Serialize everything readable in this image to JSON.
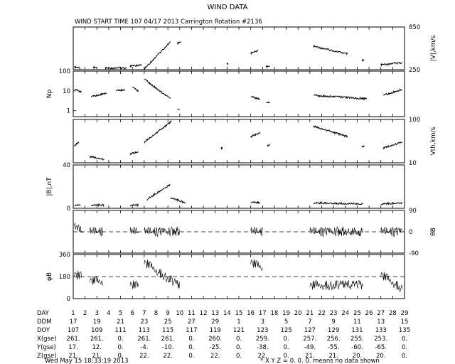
{
  "title": "WIND DATA",
  "subtitle": "WIND START TIME 107 04/17 2013 Carrington Rotation #2136",
  "footer": {
    "timestamp": "Wed May 15 18:33:19 2013",
    "note": "* X Y Z = 0. 0. 0. means no data shown"
  },
  "chart_data": [
    {
      "type": "scatter",
      "ylabel": "|V|,km/s",
      "ylim": [
        250,
        850
      ],
      "yticks": [
        "850",
        "250"
      ],
      "tick_side": "right",
      "dashed_line": null,
      "segments": [
        {
          "x": [
            1.1,
            1.6
          ],
          "y": [
            285,
            275
          ]
        },
        {
          "x": [
            2.7,
            3.0
          ],
          "y": [
            280,
            282
          ]
        },
        {
          "x": [
            3.7,
            5.5
          ],
          "y": [
            272,
            275
          ]
        },
        {
          "x": [
            5.8,
            6.8
          ],
          "y": [
            300,
            320
          ]
        },
        {
          "x": [
            7.0,
            9.2
          ],
          "y": [
            260,
            640
          ]
        },
        {
          "x": [
            9.8,
            10.1
          ],
          "y": [
            620,
            640
          ]
        },
        {
          "x": [
            14.0,
            14.1
          ],
          "y": [
            330,
            335
          ]
        },
        {
          "x": [
            16.0,
            16.6
          ],
          "y": [
            480,
            520
          ]
        },
        {
          "x": [
            17.3,
            17.6
          ],
          "y": [
            290,
            300
          ]
        },
        {
          "x": [
            21.3,
            24.2
          ],
          "y": [
            580,
            470
          ]
        },
        {
          "x": [
            25.4,
            25.6
          ],
          "y": [
            380,
            382
          ]
        },
        {
          "x": [
            27.0,
            28.8
          ],
          "y": [
            320,
            350
          ]
        }
      ]
    },
    {
      "type": "scatter",
      "ylabel": "Np",
      "ylim": [
        0.5,
        100
      ],
      "log": true,
      "yticks": [
        "100",
        "10",
        "1"
      ],
      "tick_side": "left",
      "dashed_line": null,
      "segments": [
        {
          "x": [
            1.1,
            1.7
          ],
          "y": [
            12,
            9
          ]
        },
        {
          "x": [
            2.5,
            3.8
          ],
          "y": [
            5,
            8
          ]
        },
        {
          "x": [
            4.6,
            5.4
          ],
          "y": [
            10,
            12
          ]
        },
        {
          "x": [
            6.0,
            6.5
          ],
          "y": [
            15,
            10
          ]
        },
        {
          "x": [
            7.0,
            9.2
          ],
          "y": [
            40,
            4
          ]
        },
        {
          "x": [
            9.8,
            10.0
          ],
          "y": [
            1.2,
            1.1
          ]
        },
        {
          "x": [
            16.0,
            16.8
          ],
          "y": [
            5,
            4
          ]
        },
        {
          "x": [
            17.3,
            17.6
          ],
          "y": [
            2.5,
            2.5
          ]
        },
        {
          "x": [
            21.3,
            25.8
          ],
          "y": [
            6,
            4
          ]
        },
        {
          "x": [
            27.2,
            28.8
          ],
          "y": [
            6,
            12
          ]
        }
      ]
    },
    {
      "type": "scatter",
      "ylabel": "Vth,km/s",
      "ylim": [
        10,
        100
      ],
      "log": true,
      "yticks": [
        "100",
        "10"
      ],
      "tick_side": "right",
      "dashed_line": null,
      "segments": [
        {
          "x": [
            1.1,
            1.5
          ],
          "y": [
            25,
            30
          ]
        },
        {
          "x": [
            2.4,
            3.6
          ],
          "y": [
            14,
            12
          ]
        },
        {
          "x": [
            5.8,
            6.5
          ],
          "y": [
            16,
            18
          ]
        },
        {
          "x": [
            7.0,
            9.3
          ],
          "y": [
            30,
            90
          ]
        },
        {
          "x": [
            13.5,
            13.6
          ],
          "y": [
            22,
            22
          ]
        },
        {
          "x": [
            16.0,
            16.8
          ],
          "y": [
            40,
            50
          ]
        },
        {
          "x": [
            17.4,
            17.6
          ],
          "y": [
            25,
            26
          ]
        },
        {
          "x": [
            21.3,
            24.2
          ],
          "y": [
            70,
            40
          ]
        },
        {
          "x": [
            25.4,
            25.6
          ],
          "y": [
            24,
            24
          ]
        },
        {
          "x": [
            27.2,
            28.8
          ],
          "y": [
            22,
            30
          ]
        }
      ]
    },
    {
      "type": "scatter",
      "ylabel": "|B|,nT",
      "ylim": [
        0,
        40
      ],
      "yticks": [
        "40",
        "0"
      ],
      "tick_side": "left",
      "dashed_line": null,
      "segments": [
        {
          "x": [
            1.1,
            1.6
          ],
          "y": [
            3,
            3
          ]
        },
        {
          "x": [
            2.5,
            3.6
          ],
          "y": [
            3,
            3
          ]
        },
        {
          "x": [
            5.8,
            6.5
          ],
          "y": [
            3,
            3
          ]
        },
        {
          "x": [
            7.2,
            9.2
          ],
          "y": [
            8,
            22
          ]
        },
        {
          "x": [
            9.2,
            10.5
          ],
          "y": [
            10,
            5
          ]
        },
        {
          "x": [
            16.0,
            16.8
          ],
          "y": [
            6,
            5
          ]
        },
        {
          "x": [
            21.3,
            25.5
          ],
          "y": [
            5,
            4
          ]
        },
        {
          "x": [
            27.0,
            28.8
          ],
          "y": [
            4,
            5
          ]
        }
      ]
    },
    {
      "type": "scatter",
      "ylabel": "θB",
      "ylim": [
        -90,
        90
      ],
      "yticks": [
        "90",
        "0",
        "-90"
      ],
      "tick_side": "right",
      "dashed_line": 0,
      "segments": [
        {
          "x": [
            1.1,
            1.8
          ],
          "y": [
            20,
            0
          ]
        },
        {
          "x": [
            2.4,
            3.5
          ],
          "y": [
            0,
            0
          ]
        },
        {
          "x": [
            5.8,
            6.5
          ],
          "y": [
            0,
            0
          ]
        },
        {
          "x": [
            7.0,
            10.0
          ],
          "y": [
            0,
            0
          ]
        },
        {
          "x": [
            16.0,
            17.0
          ],
          "y": [
            0,
            0
          ]
        },
        {
          "x": [
            21.0,
            25.5
          ],
          "y": [
            0,
            0
          ]
        },
        {
          "x": [
            27.0,
            28.8
          ],
          "y": [
            0,
            0
          ]
        }
      ]
    },
    {
      "type": "scatter",
      "ylabel": "φB",
      "ylim": [
        0,
        360
      ],
      "yticks": [
        "360",
        "180",
        "0"
      ],
      "tick_side": "left",
      "dashed_line": 180,
      "segments": [
        {
          "x": [
            1.1,
            1.7
          ],
          "y": [
            200,
            180
          ]
        },
        {
          "x": [
            2.4,
            3.5
          ],
          "y": [
            150,
            140
          ]
        },
        {
          "x": [
            5.8,
            6.5
          ],
          "y": [
            120,
            100
          ]
        },
        {
          "x": [
            7.0,
            10.0
          ],
          "y": [
            300,
            100
          ]
        },
        {
          "x": [
            16.0,
            17.0
          ],
          "y": [
            300,
            250
          ]
        },
        {
          "x": [
            21.0,
            25.5
          ],
          "y": [
            110,
            110
          ]
        },
        {
          "x": [
            27.0,
            28.8
          ],
          "y": [
            200,
            80
          ]
        }
      ]
    }
  ],
  "x_axis": {
    "day_min": 1,
    "day_max": 29,
    "rows": [
      {
        "label": "DAY",
        "values": [
          "1",
          "2",
          "3",
          "4",
          "5",
          "6",
          "7",
          "8",
          "9",
          "10",
          "11",
          "12",
          "13",
          "14",
          "15",
          "16",
          "17",
          "18",
          "19",
          "20",
          "21",
          "22",
          "23",
          "24",
          "25",
          "26",
          "27",
          "28",
          "29"
        ]
      },
      {
        "label": "DDM",
        "values": [
          "17",
          "19",
          "21",
          "23",
          "25",
          "27",
          "29",
          "1",
          "3",
          "5",
          "7",
          "9",
          "11",
          "13",
          "15"
        ]
      },
      {
        "label": "DOY",
        "values": [
          "107",
          "109",
          "111",
          "113",
          "115",
          "117",
          "119",
          "121",
          "123",
          "125",
          "127",
          "129",
          "131",
          "133",
          "135"
        ]
      },
      {
        "label": "X(gse)",
        "values": [
          "261.",
          "261.",
          "0.",
          "261.",
          "261.",
          "0.",
          "260.",
          "0.",
          "259.",
          "0.",
          "257.",
          "256.",
          "255.",
          "253.",
          "0."
        ]
      },
      {
        "label": "Y(gse)",
        "values": [
          "17.",
          "12.",
          "0.",
          "-4.",
          "-10.",
          "0.",
          "-25.",
          "0.",
          "-38.",
          "0.",
          "-49.",
          "-55.",
          "-60.",
          "-65.",
          "0."
        ]
      },
      {
        "label": "Z(gse)",
        "values": [
          "21.",
          "21.",
          "0.",
          "22.",
          "22.",
          "0.",
          "22.",
          "0.",
          "22.",
          "0.",
          "21.",
          "21.",
          "20.",
          "20.",
          "0."
        ]
      }
    ]
  }
}
